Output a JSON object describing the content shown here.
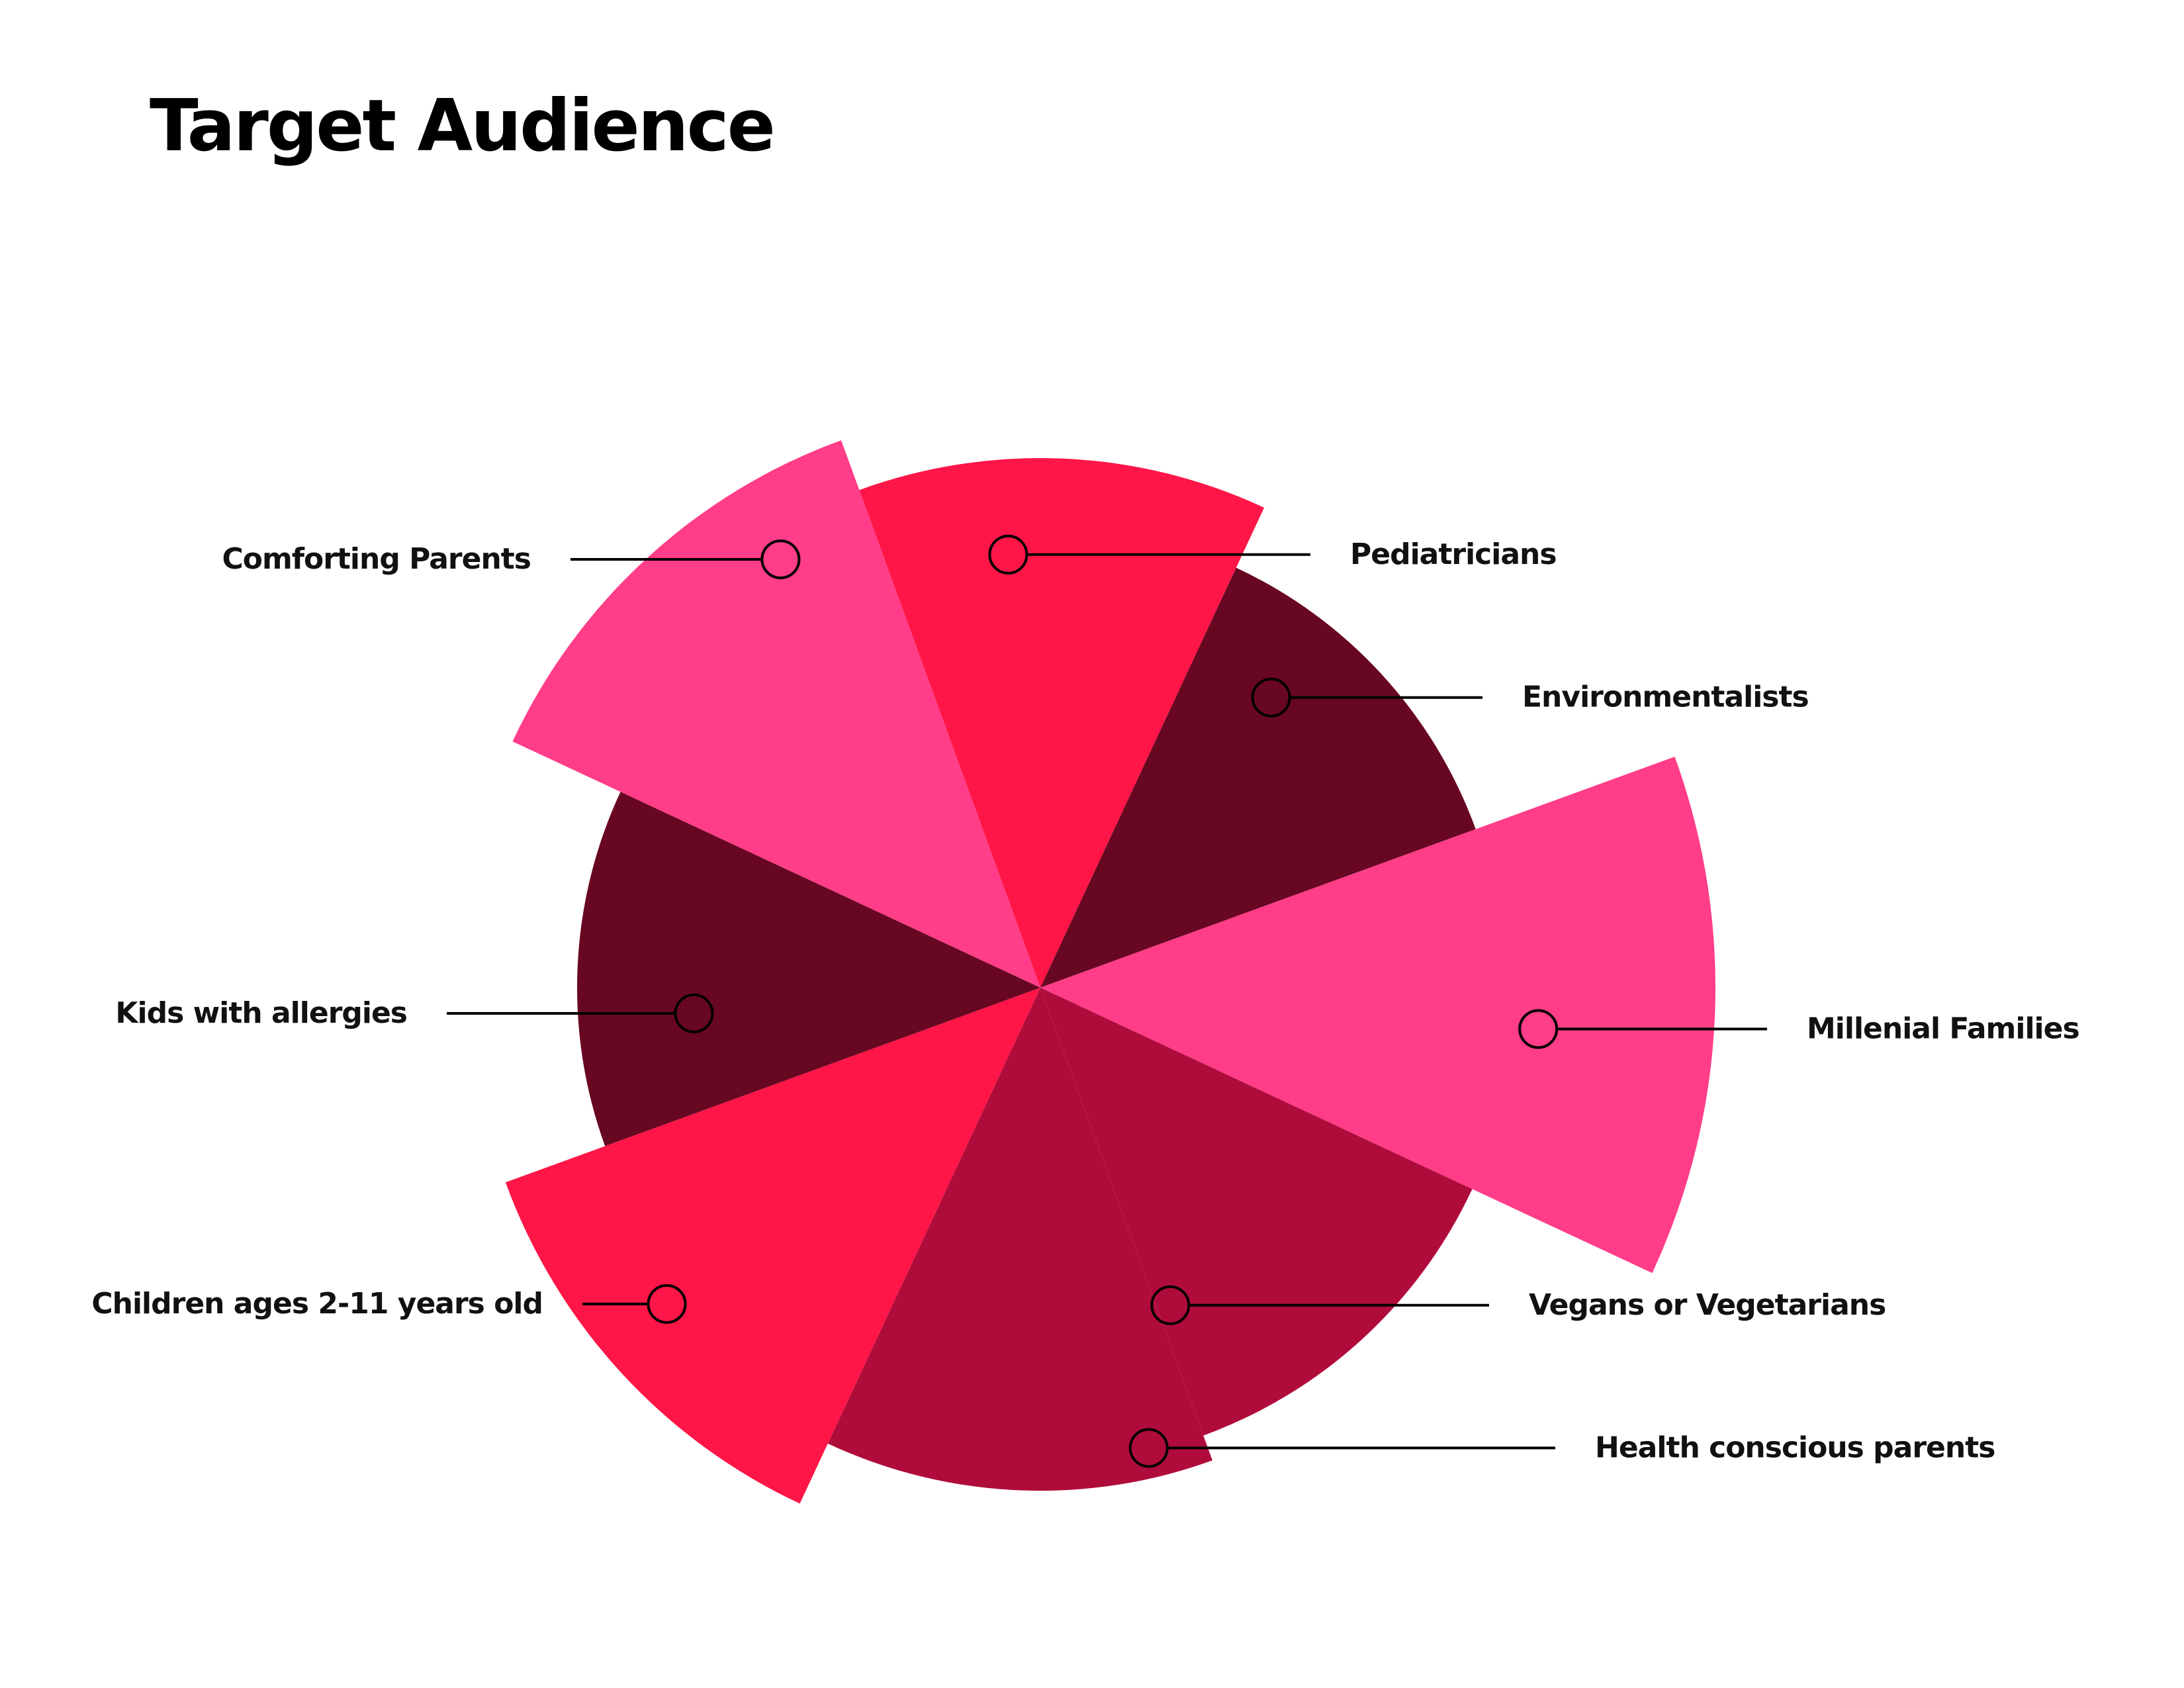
{
  "chart_data": {
    "type": "polar-area",
    "title": "Target Audience",
    "categories": [
      "Pediatricians",
      "Environmentalists",
      "Millenial Families",
      "Vegans or Vegetarians",
      "Health conscious parents",
      "Children ages 2-11 years old",
      "Kids with allergies",
      "Comforting Parents"
    ],
    "values": [
      800,
      700,
      1020,
      720,
      760,
      860,
      700,
      880
    ],
    "slice_colors": [
      "#fd1647",
      "#680721",
      "#ff3d88",
      "#b00c3b",
      "#b00c3b",
      "#fd1647",
      "#680721",
      "#ff3d88"
    ],
    "radius_scale": [
      0,
      1020
    ],
    "legend": "none",
    "grid": false
  },
  "palette": {
    "background": "#ffffff",
    "text": "#111111",
    "leader_line": "#000000"
  }
}
